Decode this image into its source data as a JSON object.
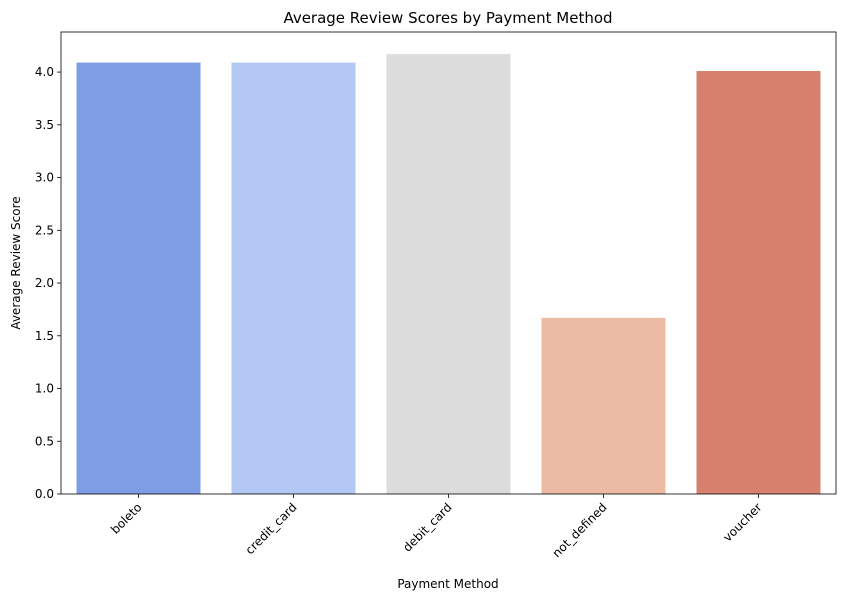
{
  "chart_data": {
    "type": "bar",
    "title": "Average Review Scores by Payment Method",
    "xlabel": "Payment Method",
    "ylabel": "Average Review Score",
    "categories": [
      "boleto",
      "credit_card",
      "debit_card",
      "not_defined",
      "voucher"
    ],
    "values": [
      4.09,
      4.09,
      4.17,
      1.67,
      4.01
    ],
    "colors": [
      "#7f9de4",
      "#b3c9f4",
      "#dcdcdc",
      "#ecbba4",
      "#d6806d"
    ],
    "ylim": [
      0,
      4.38
    ],
    "yticks": [
      0.0,
      0.5,
      1.0,
      1.5,
      2.0,
      2.5,
      3.0,
      3.5,
      4.0
    ],
    "ytick_labels": [
      "0.0",
      "0.5",
      "1.0",
      "1.5",
      "2.0",
      "2.5",
      "3.0",
      "3.5",
      "4.0"
    ],
    "grid": false,
    "xtick_rotation": 45
  }
}
